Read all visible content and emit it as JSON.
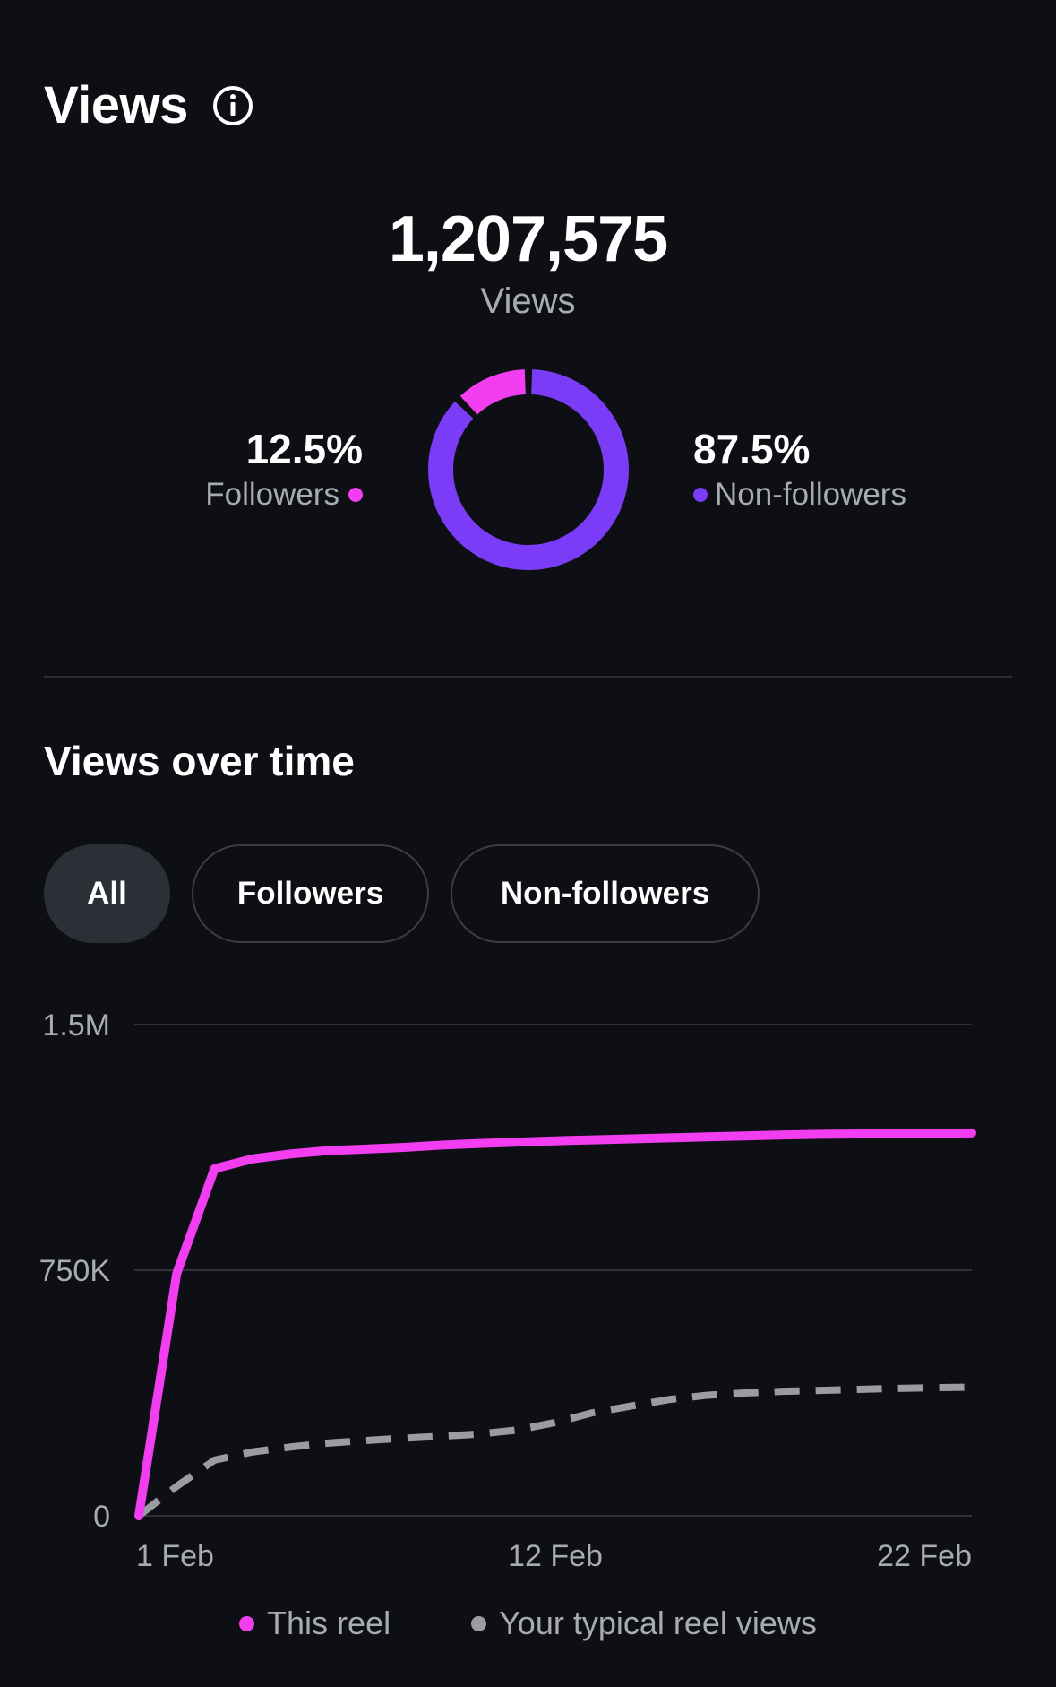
{
  "header": {
    "title": "Views"
  },
  "summary": {
    "total": "1,207,575",
    "total_label": "Views",
    "followers": {
      "pct": "12.5%",
      "label": "Followers",
      "color": "#f23ef0"
    },
    "non_followers": {
      "pct": "87.5%",
      "label": "Non-followers",
      "color": "#7a3cf7"
    }
  },
  "over_time": {
    "title": "Views over time",
    "filters": [
      "All",
      "Followers",
      "Non-followers"
    ],
    "active_filter": "All"
  },
  "chart_data": {
    "type": "line",
    "yticks": [
      "1.5M",
      "750K",
      "0"
    ],
    "ylim": [
      0,
      1500000
    ],
    "xticks": [
      "1 Feb",
      "12 Feb",
      "22 Feb"
    ],
    "x": [
      "1 Feb",
      "2 Feb",
      "3 Feb",
      "4 Feb",
      "5 Feb",
      "6 Feb",
      "7 Feb",
      "8 Feb",
      "9 Feb",
      "10 Feb",
      "11 Feb",
      "12 Feb",
      "13 Feb",
      "14 Feb",
      "15 Feb",
      "16 Feb",
      "17 Feb",
      "18 Feb",
      "19 Feb",
      "20 Feb",
      "21 Feb",
      "22 Feb",
      "23 Feb"
    ],
    "series": [
      {
        "name": "This reel",
        "color": "#f23ef0",
        "style": "solid",
        "values": [
          0,
          740000,
          1060000,
          1090000,
          1105000,
          1115000,
          1120000,
          1125000,
          1132000,
          1137000,
          1141000,
          1145000,
          1148000,
          1151000,
          1154000,
          1157000,
          1160000,
          1163000,
          1165000,
          1166000,
          1167000,
          1168000,
          1169000
        ]
      },
      {
        "name": "Your typical reel views",
        "color": "#9a9ca1",
        "style": "dashed",
        "values": [
          0,
          90000,
          170000,
          195000,
          210000,
          222000,
          230000,
          237000,
          243000,
          250000,
          262000,
          285000,
          315000,
          335000,
          355000,
          368000,
          375000,
          380000,
          383000,
          386000,
          389000,
          391000,
          393000
        ]
      }
    ]
  }
}
